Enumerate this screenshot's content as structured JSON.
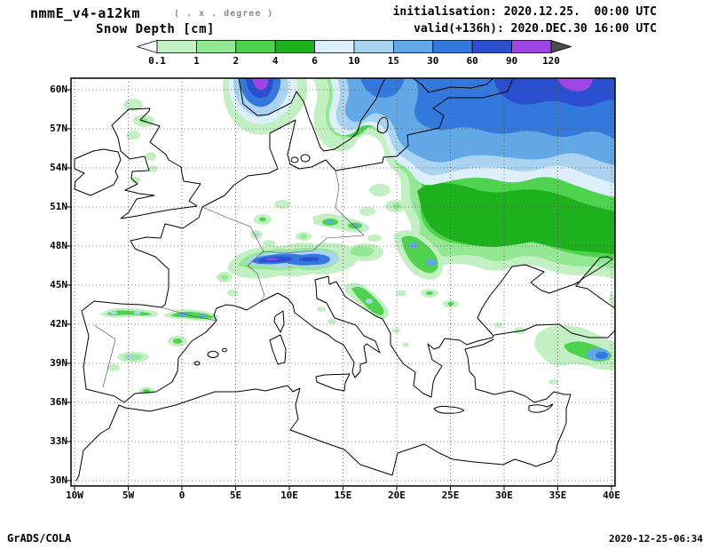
{
  "header": {
    "model_title": "nmmE_v4-a12km",
    "model_subtitle": "( . x . degree )",
    "field_title": "Snow Depth [cm]",
    "init_line": "initialisation: 2020.12.25.  00:00 UTC",
    "valid_line": "valid(+136h): 2020.DEC.30 16:00 UTC"
  },
  "footer": {
    "credit": "GrADS/COLA",
    "timestamp": "2020-12-25-06:34"
  },
  "chart_data": {
    "type": "heatmap",
    "title": "Snow Depth [cm]",
    "variable": "snow depth",
    "units": "cm",
    "model": "nmmE_v4-a12km",
    "initialisation": "2020.12.25. 00:00 UTC",
    "valid": "2020.DEC.30 16:00 UTC (+136h)",
    "lead_hours": 136,
    "map_region": "Europe",
    "lon_range_deg": [
      -10,
      40
    ],
    "lat_range_deg": [
      30,
      60
    ],
    "lon_ticks": [
      "10W",
      "5W",
      "0",
      "5E",
      "10E",
      "15E",
      "20E",
      "25E",
      "30E",
      "35E",
      "40E"
    ],
    "lon_tick_values": [
      -10,
      -5,
      0,
      5,
      10,
      15,
      20,
      25,
      30,
      35,
      40
    ],
    "lat_ticks": [
      "30N",
      "33N",
      "36N",
      "39N",
      "42N",
      "45N",
      "48N",
      "51N",
      "54N",
      "57N",
      "60N"
    ],
    "lat_tick_values": [
      30,
      33,
      36,
      39,
      42,
      45,
      48,
      51,
      54,
      57,
      60
    ],
    "grid": "dotted",
    "colorbar_position": "top",
    "level_labels": [
      "0.1",
      "1",
      "2",
      "4",
      "6",
      "10",
      "15",
      "30",
      "60",
      "90",
      "120"
    ],
    "levels_cm": [
      0.1,
      1,
      2,
      4,
      6,
      10,
      15,
      30,
      60,
      90,
      120
    ],
    "palette": {
      "below": "#ffffff",
      "colors": [
        "#c2f0c2",
        "#93e893",
        "#4fd34f",
        "#1db11d",
        "#dceffa",
        "#a9d3f1",
        "#62a7e6",
        "#3379dd",
        "#2a4fd0",
        "#9f45e6"
      ],
      "above": "#4d4d4d"
    },
    "regions": [
      {
        "area": "Scandinavia, Finland, Baltics, NW Russia",
        "snow_depth_cm": "10 to >120"
      },
      {
        "area": "Southern Norway mountains",
        "snow_depth_cm": "30-120"
      },
      {
        "area": "Belarus / western Russia / northern Ukraine",
        "snow_depth_cm": "1-10"
      },
      {
        "area": "Poland and Baltic coast",
        "snow_depth_cm": "0.1-2"
      },
      {
        "area": "Alps",
        "snow_depth_cm": "15 to >90"
      },
      {
        "area": "German uplands / Erzgebirge / Sudetes",
        "snow_depth_cm": "0.1-15"
      },
      {
        "area": "Carpathians",
        "snow_depth_cm": "0.1-30"
      },
      {
        "area": "Dinaric Alps / Balkans",
        "snow_depth_cm": "0.1-10"
      },
      {
        "area": "Pyrenees and northern Spain ranges",
        "snow_depth_cm": "0.1-30"
      },
      {
        "area": "Scotland and northern Britain",
        "snow_depth_cm": "0.1-2"
      },
      {
        "area": "Eastern Turkey / Caucasus",
        "snow_depth_cm": "0.1-60"
      },
      {
        "area": "Western and southern Europe lowlands, Mediterranean",
        "snow_depth_cm": "0"
      }
    ]
  }
}
